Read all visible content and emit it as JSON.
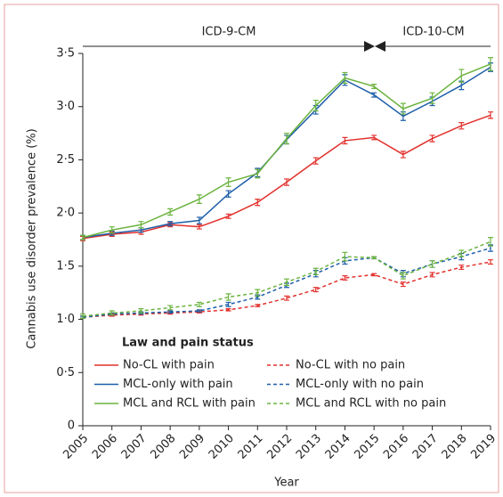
{
  "chart_data": {
    "type": "line",
    "annotations": [
      "ICD-9-CM",
      "ICD-10-CM"
    ],
    "x_label": "Year",
    "y_label": "Cannabis use disorder prevalence (%)",
    "legend_title": "Law and pain status",
    "x": [
      2005,
      2006,
      2007,
      2008,
      2009,
      2010,
      2011,
      2012,
      2013,
      2014,
      2015,
      2016,
      2017,
      2018,
      2019
    ],
    "xlim": [
      2005,
      2019
    ],
    "xticks": [
      2005,
      2006,
      2007,
      2008,
      2009,
      2010,
      2011,
      2012,
      2013,
      2014,
      2015,
      2016,
      2017,
      2018,
      2019
    ],
    "ylim": [
      0,
      3.5
    ],
    "yticks": [
      0,
      {
        "value": 0.5,
        "label": "0·5"
      },
      {
        "value": 1,
        "label": "1·0"
      },
      {
        "value": 1.5,
        "label": "1·5"
      },
      {
        "value": 2,
        "label": "2·0"
      },
      {
        "value": 2.5,
        "label": "2·5"
      },
      {
        "value": 3,
        "label": "3·0"
      },
      {
        "value": 3.5,
        "label": "3·5"
      }
    ],
    "series": [
      {
        "name": "No-CL with pain",
        "color": "#e2312d",
        "dashed": false,
        "values": [
          1.76,
          1.8,
          1.82,
          1.89,
          1.87,
          1.97,
          2.1,
          2.29,
          2.49,
          2.68,
          2.71,
          2.55,
          2.7,
          2.82,
          2.92
        ],
        "errors": [
          0.02,
          0.02,
          0.02,
          0.02,
          0.02,
          0.02,
          0.03,
          0.03,
          0.03,
          0.03,
          0.02,
          0.03,
          0.03,
          0.03,
          0.03
        ]
      },
      {
        "name": "MCL-only with pain",
        "color": "#1d5ea8",
        "dashed": false,
        "values": [
          1.77,
          1.81,
          1.84,
          1.9,
          1.93,
          2.18,
          2.38,
          2.69,
          2.97,
          3.25,
          3.11,
          2.91,
          3.05,
          3.2,
          3.37
        ],
        "errors": [
          0.02,
          0.02,
          0.02,
          0.02,
          0.03,
          0.03,
          0.04,
          0.04,
          0.04,
          0.05,
          0.02,
          0.04,
          0.04,
          0.04,
          0.04
        ]
      },
      {
        "name": "MCL and RCL with pain",
        "color": "#6bb33e",
        "dashed": false,
        "values": [
          1.77,
          1.84,
          1.89,
          2.01,
          2.13,
          2.29,
          2.37,
          2.7,
          3.01,
          3.27,
          3.19,
          2.98,
          3.08,
          3.29,
          3.4
        ],
        "errors": [
          0.02,
          0.03,
          0.03,
          0.03,
          0.04,
          0.04,
          0.04,
          0.05,
          0.05,
          0.05,
          0.02,
          0.05,
          0.05,
          0.06,
          0.06
        ]
      },
      {
        "name": "No-CL with no pain",
        "color": "#e2312d",
        "dashed": true,
        "values": [
          1.02,
          1.04,
          1.05,
          1.06,
          1.07,
          1.09,
          1.13,
          1.2,
          1.28,
          1.39,
          1.42,
          1.33,
          1.42,
          1.49,
          1.54
        ],
        "errors": [
          0.01,
          0.01,
          0.01,
          0.01,
          0.01,
          0.01,
          0.01,
          0.02,
          0.02,
          0.02,
          0.01,
          0.02,
          0.02,
          0.02,
          0.02
        ]
      },
      {
        "name": "MCL-only with no pain",
        "color": "#1d5ea8",
        "dashed": true,
        "values": [
          1.02,
          1.05,
          1.06,
          1.07,
          1.08,
          1.14,
          1.21,
          1.32,
          1.43,
          1.55,
          1.58,
          1.43,
          1.52,
          1.59,
          1.67
        ],
        "errors": [
          0.01,
          0.01,
          0.01,
          0.01,
          0.01,
          0.02,
          0.02,
          0.02,
          0.03,
          0.03,
          0.01,
          0.03,
          0.03,
          0.03,
          0.03
        ]
      },
      {
        "name": "MCL and RCL with no pain",
        "color": "#6bb33e",
        "dashed": true,
        "values": [
          1.03,
          1.06,
          1.08,
          1.11,
          1.14,
          1.21,
          1.25,
          1.35,
          1.45,
          1.59,
          1.58,
          1.41,
          1.52,
          1.62,
          1.73
        ],
        "errors": [
          0.02,
          0.02,
          0.02,
          0.02,
          0.02,
          0.03,
          0.03,
          0.03,
          0.03,
          0.04,
          0.01,
          0.03,
          0.03,
          0.03,
          0.04
        ]
      }
    ]
  }
}
